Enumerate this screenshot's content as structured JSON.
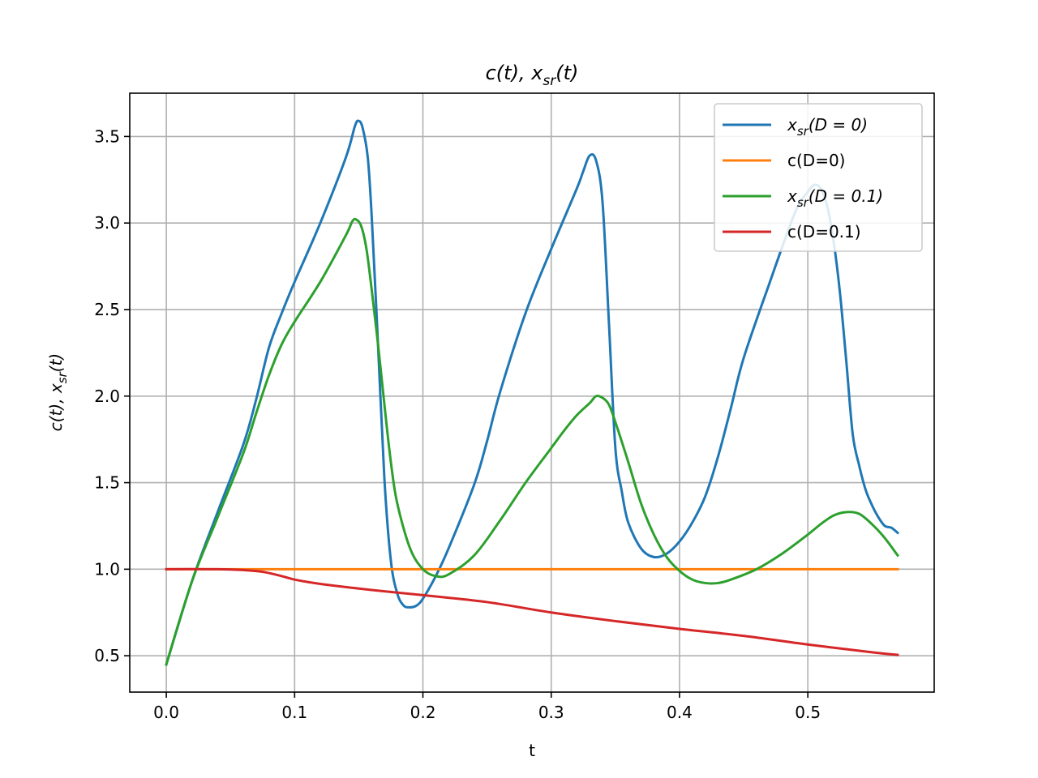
{
  "chart_data": {
    "type": "line",
    "title": {
      "base": "c(t), x",
      "sub": "sr",
      "tail": "(t)"
    },
    "xlabel": "t",
    "ylabel": {
      "base": "c(t), x",
      "sub": "sr",
      "tail": "(t)"
    },
    "xlim": [
      -0.0285,
      0.5985
    ],
    "ylim": [
      0.29,
      3.75
    ],
    "xticks": [
      0.0,
      0.1,
      0.2,
      0.3,
      0.4,
      0.5
    ],
    "xtick_labels": [
      "0.0",
      "0.1",
      "0.2",
      "0.3",
      "0.4",
      "0.5"
    ],
    "yticks": [
      0.5,
      1.0,
      1.5,
      2.0,
      2.5,
      3.0,
      3.5
    ],
    "ytick_labels": [
      "0.5",
      "1.0",
      "1.5",
      "2.0",
      "2.5",
      "3.0",
      "3.5"
    ],
    "grid": true,
    "legend_position": "top-right",
    "series": [
      {
        "legend": {
          "base": "x",
          "sub": "sr",
          "tail": "(D = 0)"
        },
        "color": "#1f77b4",
        "points": [
          [
            0.0,
            0.45
          ],
          [
            0.02,
            0.93
          ],
          [
            0.04,
            1.33
          ],
          [
            0.06,
            1.72
          ],
          [
            0.07,
            1.98
          ],
          [
            0.08,
            2.28
          ],
          [
            0.09,
            2.48
          ],
          [
            0.1,
            2.66
          ],
          [
            0.12,
            3.0
          ],
          [
            0.14,
            3.38
          ],
          [
            0.147,
            3.56
          ],
          [
            0.15,
            3.59
          ],
          [
            0.153,
            3.55
          ],
          [
            0.157,
            3.38
          ],
          [
            0.16,
            3.05
          ],
          [
            0.165,
            2.3
          ],
          [
            0.17,
            1.52
          ],
          [
            0.175,
            1.05
          ],
          [
            0.18,
            0.86
          ],
          [
            0.185,
            0.79
          ],
          [
            0.19,
            0.78
          ],
          [
            0.195,
            0.79
          ],
          [
            0.2,
            0.83
          ],
          [
            0.21,
            0.96
          ],
          [
            0.22,
            1.12
          ],
          [
            0.24,
            1.49
          ],
          [
            0.25,
            1.74
          ],
          [
            0.26,
            2.02
          ],
          [
            0.28,
            2.48
          ],
          [
            0.3,
            2.85
          ],
          [
            0.32,
            3.2
          ],
          [
            0.325,
            3.3
          ],
          [
            0.33,
            3.39
          ],
          [
            0.335,
            3.36
          ],
          [
            0.34,
            3.12
          ],
          [
            0.345,
            2.42
          ],
          [
            0.35,
            1.7
          ],
          [
            0.355,
            1.45
          ],
          [
            0.36,
            1.27
          ],
          [
            0.37,
            1.12
          ],
          [
            0.38,
            1.07
          ],
          [
            0.39,
            1.09
          ],
          [
            0.4,
            1.16
          ],
          [
            0.41,
            1.27
          ],
          [
            0.42,
            1.42
          ],
          [
            0.43,
            1.65
          ],
          [
            0.44,
            1.93
          ],
          [
            0.45,
            2.22
          ],
          [
            0.47,
            2.65
          ],
          [
            0.49,
            3.06
          ],
          [
            0.5,
            3.18
          ],
          [
            0.505,
            3.22
          ],
          [
            0.51,
            3.2
          ],
          [
            0.515,
            3.1
          ],
          [
            0.52,
            2.9
          ],
          [
            0.525,
            2.6
          ],
          [
            0.53,
            2.2
          ],
          [
            0.535,
            1.78
          ],
          [
            0.54,
            1.6
          ],
          [
            0.545,
            1.46
          ],
          [
            0.55,
            1.37
          ],
          [
            0.555,
            1.3
          ],
          [
            0.56,
            1.25
          ],
          [
            0.565,
            1.24
          ],
          [
            0.57,
            1.21
          ]
        ]
      },
      {
        "legend": {
          "base": "c(D=0)",
          "sub": "",
          "tail": ""
        },
        "color": "#ff7f0e",
        "points": [
          [
            0.0,
            1.0
          ],
          [
            0.1,
            1.0
          ],
          [
            0.2,
            1.0
          ],
          [
            0.3,
            1.0
          ],
          [
            0.4,
            1.0
          ],
          [
            0.5,
            1.0
          ],
          [
            0.57,
            1.0
          ]
        ]
      },
      {
        "legend": {
          "base": "x",
          "sub": "sr",
          "tail": "(D = 0.1)"
        },
        "color": "#2ca02c",
        "points": [
          [
            0.0,
            0.45
          ],
          [
            0.02,
            0.93
          ],
          [
            0.04,
            1.3
          ],
          [
            0.06,
            1.67
          ],
          [
            0.07,
            1.9
          ],
          [
            0.08,
            2.12
          ],
          [
            0.09,
            2.3
          ],
          [
            0.1,
            2.43
          ],
          [
            0.12,
            2.66
          ],
          [
            0.14,
            2.93
          ],
          [
            0.145,
            3.01
          ],
          [
            0.148,
            3.02
          ],
          [
            0.152,
            2.98
          ],
          [
            0.156,
            2.85
          ],
          [
            0.16,
            2.62
          ],
          [
            0.165,
            2.3
          ],
          [
            0.17,
            1.95
          ],
          [
            0.175,
            1.62
          ],
          [
            0.18,
            1.38
          ],
          [
            0.19,
            1.12
          ],
          [
            0.2,
            1.0
          ],
          [
            0.21,
            0.96
          ],
          [
            0.22,
            0.97
          ],
          [
            0.24,
            1.08
          ],
          [
            0.26,
            1.28
          ],
          [
            0.28,
            1.5
          ],
          [
            0.3,
            1.7
          ],
          [
            0.31,
            1.8
          ],
          [
            0.32,
            1.89
          ],
          [
            0.33,
            1.96
          ],
          [
            0.335,
            2.0
          ],
          [
            0.34,
            1.99
          ],
          [
            0.345,
            1.95
          ],
          [
            0.35,
            1.85
          ],
          [
            0.36,
            1.62
          ],
          [
            0.37,
            1.38
          ],
          [
            0.38,
            1.2
          ],
          [
            0.39,
            1.07
          ],
          [
            0.4,
            0.99
          ],
          [
            0.41,
            0.94
          ],
          [
            0.42,
            0.92
          ],
          [
            0.43,
            0.92
          ],
          [
            0.44,
            0.94
          ],
          [
            0.46,
            1.0
          ],
          [
            0.48,
            1.09
          ],
          [
            0.5,
            1.2
          ],
          [
            0.51,
            1.26
          ],
          [
            0.52,
            1.31
          ],
          [
            0.53,
            1.33
          ],
          [
            0.54,
            1.32
          ],
          [
            0.55,
            1.26
          ],
          [
            0.56,
            1.18
          ],
          [
            0.57,
            1.08
          ]
        ]
      },
      {
        "legend": {
          "base": "c(D=0.1)",
          "sub": "",
          "tail": ""
        },
        "color": "#d62728",
        "points": [
          [
            0.0,
            1.0
          ],
          [
            0.04,
            1.0
          ],
          [
            0.06,
            0.995
          ],
          [
            0.075,
            0.985
          ],
          [
            0.09,
            0.96
          ],
          [
            0.1,
            0.94
          ],
          [
            0.12,
            0.915
          ],
          [
            0.16,
            0.88
          ],
          [
            0.2,
            0.85
          ],
          [
            0.25,
            0.81
          ],
          [
            0.3,
            0.75
          ],
          [
            0.35,
            0.7
          ],
          [
            0.4,
            0.655
          ],
          [
            0.45,
            0.615
          ],
          [
            0.5,
            0.565
          ],
          [
            0.55,
            0.52
          ],
          [
            0.57,
            0.505
          ]
        ]
      }
    ]
  }
}
